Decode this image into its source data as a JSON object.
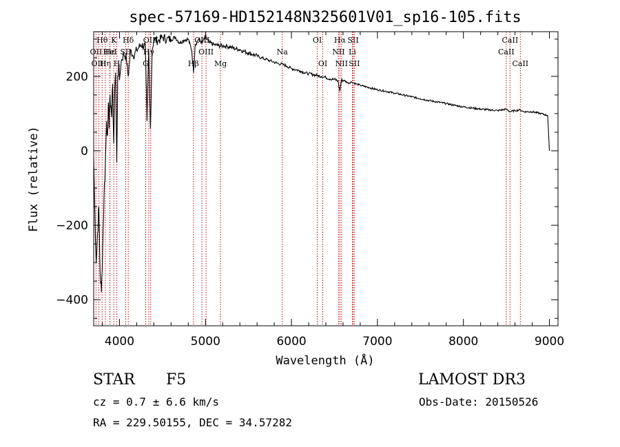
{
  "chart_data": {
    "type": "line",
    "title": "spec-57169-HD152148N325601V01_sp16-105.fits",
    "xlabel": "Wavelength (Å)",
    "ylabel": "Flux (relative)",
    "xlim": [
      3700,
      9100
    ],
    "ylim": [
      -470,
      320
    ],
    "xticks": [
      4000,
      5000,
      6000,
      7000,
      8000,
      9000
    ],
    "yticks": [
      -400,
      -200,
      0,
      200
    ],
    "series": [
      {
        "name": "spectrum",
        "x": [
          3700,
          3715,
          3730,
          3745,
          3760,
          3775,
          3790,
          3805,
          3820,
          3835,
          3850,
          3860,
          3870,
          3880,
          3890,
          3900,
          3910,
          3920,
          3933,
          3945,
          3955,
          3968,
          3980,
          3990,
          4000,
          4020,
          4050,
          4080,
          4101,
          4130,
          4160,
          4200,
          4250,
          4300,
          4320,
          4340,
          4360,
          4380,
          4400,
          4450,
          4500,
          4550,
          4600,
          4650,
          4700,
          4750,
          4800,
          4840,
          4861,
          4880,
          4920,
          4960,
          5000,
          5050,
          5100,
          5150,
          5200,
          5250,
          5300,
          5350,
          5400,
          5450,
          5500,
          5550,
          5600,
          5650,
          5700,
          5750,
          5800,
          5850,
          5900,
          5950,
          6000,
          6050,
          6100,
          6150,
          6200,
          6250,
          6300,
          6350,
          6400,
          6450,
          6500,
          6540,
          6563,
          6580,
          6620,
          6660,
          6700,
          6750,
          6800,
          6900,
          7000,
          7100,
          7200,
          7300,
          7400,
          7500,
          7600,
          7700,
          7800,
          7900,
          8000,
          8100,
          8200,
          8300,
          8400,
          8498,
          8542,
          8600,
          8662,
          8700,
          8800,
          8900,
          8980,
          9000
        ],
        "flux": [
          -20,
          -180,
          -300,
          -220,
          -150,
          -330,
          -380,
          -260,
          -120,
          -40,
          80,
          40,
          130,
          60,
          150,
          120,
          90,
          180,
          20,
          170,
          210,
          -30,
          200,
          230,
          190,
          240,
          260,
          250,
          200,
          270,
          255,
          270,
          285,
          280,
          80,
          270,
          60,
          270,
          300,
          295,
          305,
          300,
          300,
          305,
          290,
          298,
          300,
          270,
          210,
          285,
          300,
          290,
          305,
          290,
          285,
          283,
          282,
          281,
          278,
          274,
          272,
          267,
          263,
          259,
          255,
          250,
          246,
          242,
          238,
          234,
          232,
          227,
          221,
          218,
          215,
          210,
          207,
          205,
          202,
          200,
          197,
          193,
          192,
          188,
          160,
          190,
          188,
          182,
          185,
          180,
          176,
          170,
          164,
          160,
          155,
          150,
          145,
          140,
          135,
          131,
          127,
          122,
          118,
          115,
          112,
          110,
          108,
          112,
          105,
          108,
          110,
          105,
          105,
          100,
          95,
          0
        ]
      }
    ],
    "line_markers": [
      {
        "label": "Hθ",
        "wavelength": 3798,
        "row": 1
      },
      {
        "label": "OII",
        "wavelength": 3727,
        "row": 2
      },
      {
        "label": "OIII",
        "wavelength": 3760,
        "row": 3
      },
      {
        "label": "Hη",
        "wavelength": 3835,
        "row": 3
      },
      {
        "label": "Hε",
        "wavelength": 3889,
        "row": 2
      },
      {
        "label": "HeI",
        "wavelength": 3889,
        "row": 2
      },
      {
        "label": "K",
        "wavelength": 3934,
        "row": 1
      },
      {
        "label": "H",
        "wavelength": 3969,
        "row": 3
      },
      {
        "label": "Hδ",
        "wavelength": 4102,
        "row": 1
      },
      {
        "label": "SII",
        "wavelength": 4072,
        "row": 2
      },
      {
        "label": "G",
        "wavelength": 4305,
        "row": 3
      },
      {
        "label": "OIII",
        "wavelength": 4363,
        "row": 1
      },
      {
        "label": "Hγ",
        "wavelength": 4341,
        "row": 2
      },
      {
        "label": "Hβ",
        "wavelength": 4861,
        "row": 3
      },
      {
        "label": "OIII",
        "wavelength": 4959,
        "row": 1
      },
      {
        "label": "OIII",
        "wavelength": 5007,
        "row": 2
      },
      {
        "label": "Mg",
        "wavelength": 5175,
        "row": 3
      },
      {
        "label": "Na",
        "wavelength": 5893,
        "row": 2
      },
      {
        "label": "OI",
        "wavelength": 6300,
        "row": 1
      },
      {
        "label": "OI",
        "wavelength": 6364,
        "row": 3
      },
      {
        "label": "Hα",
        "wavelength": 6563,
        "row": 1
      },
      {
        "label": "NII",
        "wavelength": 6548,
        "row": 2
      },
      {
        "label": "NII",
        "wavelength": 6583,
        "row": 3
      },
      {
        "label": "SII",
        "wavelength": 6717,
        "row": 1
      },
      {
        "label": "Li",
        "wavelength": 6708,
        "row": 2
      },
      {
        "label": "SII",
        "wavelength": 6731,
        "row": 3
      },
      {
        "label": "CaII",
        "wavelength": 8542,
        "row": 1
      },
      {
        "label": "CaII",
        "wavelength": 8498,
        "row": 2
      },
      {
        "label": "CaII",
        "wavelength": 8662,
        "row": 3
      }
    ],
    "marker_color": "#cc0000",
    "line_color": "#000000"
  },
  "info": {
    "object_type": "STAR",
    "subclass": "F5",
    "survey": "LAMOST DR3",
    "cz": "cz = 0.7 ± 6.6 km/s",
    "obs_date": "Obs-Date: 20150526",
    "coords": "RA = 229.50155, DEC =  34.57282"
  }
}
